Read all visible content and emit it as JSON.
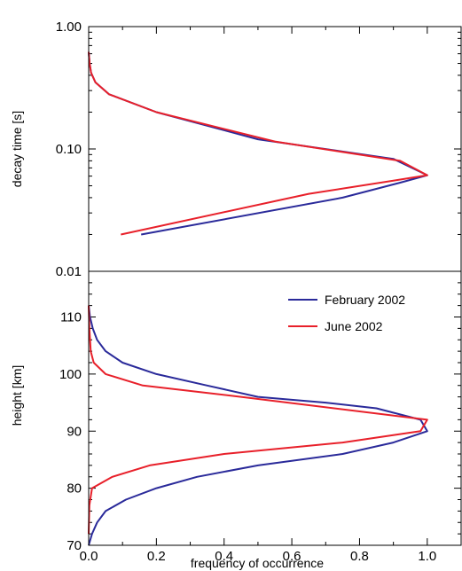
{
  "chart_data": [
    {
      "type": "line",
      "panel": "top",
      "ylabel": "decay time [s]",
      "yscale": "log",
      "ylim": [
        0.01,
        1.0
      ],
      "xlim": [
        0,
        1.1
      ],
      "y_ticks": [
        "1.00",
        "0.10",
        "0.01"
      ],
      "x_ticks": [],
      "grid": false,
      "series": [
        {
          "name": "February 2002",
          "color": "#2a2a9a",
          "x": [
            0.155,
            0.75,
            0.92,
            1.0,
            0.9,
            0.5,
            0.2,
            0.06,
            0.02,
            0.007,
            0.003,
            0.0
          ],
          "y": [
            0.02,
            0.04,
            0.053,
            0.061,
            0.083,
            0.12,
            0.2,
            0.28,
            0.35,
            0.42,
            0.5,
            0.62
          ]
        },
        {
          "name": "June 2002",
          "color": "#e8202a",
          "x": [
            0.095,
            0.65,
            0.9,
            1.0,
            0.92,
            0.55,
            0.2,
            0.06,
            0.02,
            0.007,
            0.003,
            0.0
          ],
          "y": [
            0.02,
            0.043,
            0.055,
            0.061,
            0.08,
            0.115,
            0.2,
            0.28,
            0.35,
            0.42,
            0.5,
            0.62
          ]
        }
      ]
    },
    {
      "type": "line",
      "panel": "bottom",
      "ylabel": "height [km]",
      "xlabel": "frequency of occurrence",
      "ylim": [
        70,
        118
      ],
      "xlim": [
        0,
        1.1
      ],
      "y_ticks": [
        70,
        80,
        90,
        100,
        110
      ],
      "x_ticks": [
        "0.0",
        "0.2",
        "0.4",
        "0.6",
        "0.8",
        "1.0"
      ],
      "grid": false,
      "legend_position": "top-right",
      "series": [
        {
          "name": "February 2002",
          "color": "#2a2a9a",
          "x": [
            0.0,
            0.01,
            0.025,
            0.05,
            0.11,
            0.2,
            0.32,
            0.5,
            0.75,
            0.9,
            1.0,
            0.98,
            0.85,
            0.7,
            0.5,
            0.35,
            0.2,
            0.1,
            0.05,
            0.025,
            0.012,
            0.004,
            0.0
          ],
          "y": [
            70,
            72,
            74,
            76,
            78,
            80,
            82,
            84,
            86,
            88,
            90,
            92,
            94,
            95,
            96,
            98,
            100,
            102,
            104,
            106,
            108,
            110,
            112
          ]
        },
        {
          "name": "June 2002",
          "color": "#e8202a",
          "x": [
            0.0,
            0.002,
            0.01,
            0.07,
            0.18,
            0.4,
            0.75,
            0.98,
            1.0,
            0.45,
            0.16,
            0.05,
            0.015,
            0.006,
            0.002,
            0.0
          ],
          "y": [
            72,
            77,
            80,
            82,
            84,
            86,
            88,
            90,
            92,
            96,
            98,
            100,
            102,
            104,
            108,
            112
          ]
        }
      ]
    }
  ]
}
